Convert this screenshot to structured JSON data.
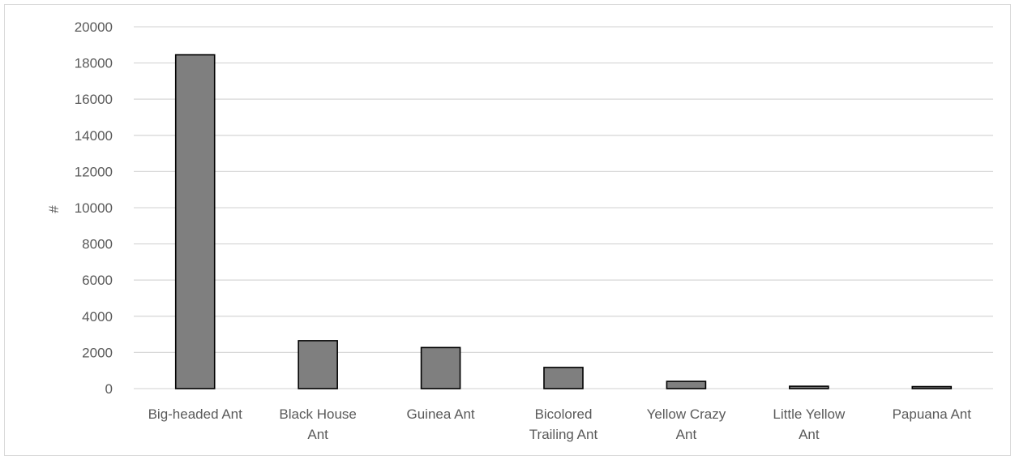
{
  "chart_data": {
    "type": "bar",
    "title": "",
    "xlabel": "",
    "ylabel": "#",
    "categories": [
      [
        "Big-headed Ant"
      ],
      [
        "Black House",
        "Ant"
      ],
      [
        "Guinea Ant"
      ],
      [
        "Bicolored",
        "Trailing Ant"
      ],
      [
        "Yellow Crazy",
        "Ant"
      ],
      [
        "Little Yellow",
        "Ant"
      ],
      [
        "Papuana Ant"
      ]
    ],
    "values": [
      18450,
      2650,
      2270,
      1170,
      400,
      130,
      110
    ],
    "ylim": [
      0,
      20000
    ],
    "yticks": [
      0,
      2000,
      4000,
      6000,
      8000,
      10000,
      12000,
      14000,
      16000,
      18000,
      20000
    ],
    "grid": true,
    "legend": "none",
    "colors": {
      "bar_fill": "#7f7f7f",
      "bar_stroke": "#000000",
      "grid": "#d9d9d9",
      "text": "#595959"
    }
  }
}
